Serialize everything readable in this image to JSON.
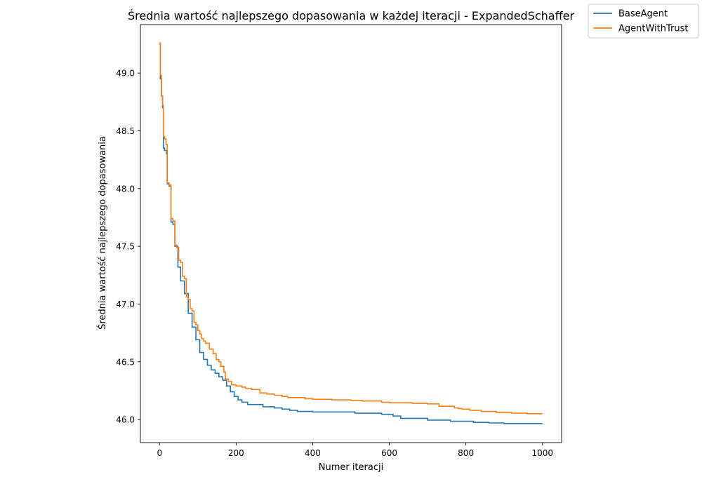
{
  "chart_data": {
    "type": "line",
    "title": "Średnia wartość najlepszego dopasowania w każdej iteracji - ExpandedSchaffer",
    "xlabel": "Numer iteracji",
    "ylabel": "Średnia wartość najlepszego dopasowania",
    "xlim": [
      -50,
      1050
    ],
    "ylim": [
      45.8,
      49.42
    ],
    "x_ticks": [
      0,
      200,
      400,
      600,
      800,
      1000
    ],
    "x_tick_labels": [
      "0",
      "200",
      "400",
      "600",
      "800",
      "1000"
    ],
    "y_ticks": [
      46.0,
      46.5,
      47.0,
      47.5,
      48.0,
      48.5,
      49.0
    ],
    "y_tick_labels": [
      "46.0",
      "46.5",
      "47.0",
      "47.5",
      "48.0",
      "48.5",
      "49.0"
    ],
    "grid": false,
    "legend_position": "top-right outside",
    "series": [
      {
        "name": "BaseAgent",
        "color": "#1f77b4",
        "step": true,
        "points": [
          [
            0,
            49.25
          ],
          [
            2,
            48.95
          ],
          [
            5,
            48.8
          ],
          [
            8,
            48.7
          ],
          [
            10,
            48.35
          ],
          [
            13,
            48.33
          ],
          [
            18,
            48.3
          ],
          [
            20,
            48.04
          ],
          [
            25,
            48.02
          ],
          [
            30,
            47.71
          ],
          [
            35,
            47.69
          ],
          [
            40,
            47.5
          ],
          [
            48,
            47.32
          ],
          [
            55,
            47.2
          ],
          [
            65,
            47.09
          ],
          [
            75,
            46.92
          ],
          [
            85,
            46.8
          ],
          [
            95,
            46.69
          ],
          [
            105,
            46.58
          ],
          [
            115,
            46.52
          ],
          [
            125,
            46.47
          ],
          [
            135,
            46.43
          ],
          [
            145,
            46.4
          ],
          [
            155,
            46.37
          ],
          [
            165,
            46.34
          ],
          [
            175,
            46.29
          ],
          [
            185,
            46.24
          ],
          [
            195,
            46.2
          ],
          [
            205,
            46.17
          ],
          [
            215,
            46.15
          ],
          [
            230,
            46.13
          ],
          [
            270,
            46.11
          ],
          [
            300,
            46.1
          ],
          [
            320,
            46.09
          ],
          [
            340,
            46.08
          ],
          [
            360,
            46.07
          ],
          [
            400,
            46.065
          ],
          [
            510,
            46.055
          ],
          [
            580,
            46.045
          ],
          [
            610,
            46.03
          ],
          [
            630,
            46.01
          ],
          [
            700,
            45.995
          ],
          [
            760,
            45.985
          ],
          [
            820,
            45.975
          ],
          [
            860,
            45.97
          ],
          [
            900,
            45.965
          ],
          [
            1000,
            45.965
          ]
        ]
      },
      {
        "name": "AgentWithTrust",
        "color": "#ff7f0e",
        "step": true,
        "points": [
          [
            0,
            49.26
          ],
          [
            2,
            48.98
          ],
          [
            5,
            48.8
          ],
          [
            8,
            48.72
          ],
          [
            10,
            48.45
          ],
          [
            13,
            48.43
          ],
          [
            17,
            48.38
          ],
          [
            20,
            48.05
          ],
          [
            25,
            48.03
          ],
          [
            30,
            47.74
          ],
          [
            35,
            47.72
          ],
          [
            40,
            47.51
          ],
          [
            45,
            47.49
          ],
          [
            50,
            47.38
          ],
          [
            55,
            47.36
          ],
          [
            60,
            47.24
          ],
          [
            65,
            47.22
          ],
          [
            70,
            47.06
          ],
          [
            75,
            47.04
          ],
          [
            80,
            46.96
          ],
          [
            85,
            46.94
          ],
          [
            90,
            46.84
          ],
          [
            95,
            46.82
          ],
          [
            100,
            46.77
          ],
          [
            105,
            46.74
          ],
          [
            110,
            46.7
          ],
          [
            115,
            46.68
          ],
          [
            120,
            46.66
          ],
          [
            130,
            46.61
          ],
          [
            140,
            46.57
          ],
          [
            148,
            46.52
          ],
          [
            155,
            46.5
          ],
          [
            160,
            46.46
          ],
          [
            168,
            46.41
          ],
          [
            172,
            46.35
          ],
          [
            180,
            46.33
          ],
          [
            188,
            46.3
          ],
          [
            200,
            46.29
          ],
          [
            215,
            46.28
          ],
          [
            225,
            46.27
          ],
          [
            240,
            46.26
          ],
          [
            262,
            46.23
          ],
          [
            280,
            46.22
          ],
          [
            300,
            46.21
          ],
          [
            320,
            46.2
          ],
          [
            335,
            46.19
          ],
          [
            380,
            46.18
          ],
          [
            400,
            46.175
          ],
          [
            450,
            46.17
          ],
          [
            500,
            46.165
          ],
          [
            530,
            46.16
          ],
          [
            580,
            46.15
          ],
          [
            600,
            46.145
          ],
          [
            660,
            46.14
          ],
          [
            700,
            46.135
          ],
          [
            730,
            46.115
          ],
          [
            770,
            46.1
          ],
          [
            780,
            46.095
          ],
          [
            790,
            46.09
          ],
          [
            810,
            46.08
          ],
          [
            840,
            46.07
          ],
          [
            880,
            46.06
          ],
          [
            920,
            46.055
          ],
          [
            960,
            46.05
          ],
          [
            1000,
            46.05
          ]
        ]
      }
    ]
  }
}
